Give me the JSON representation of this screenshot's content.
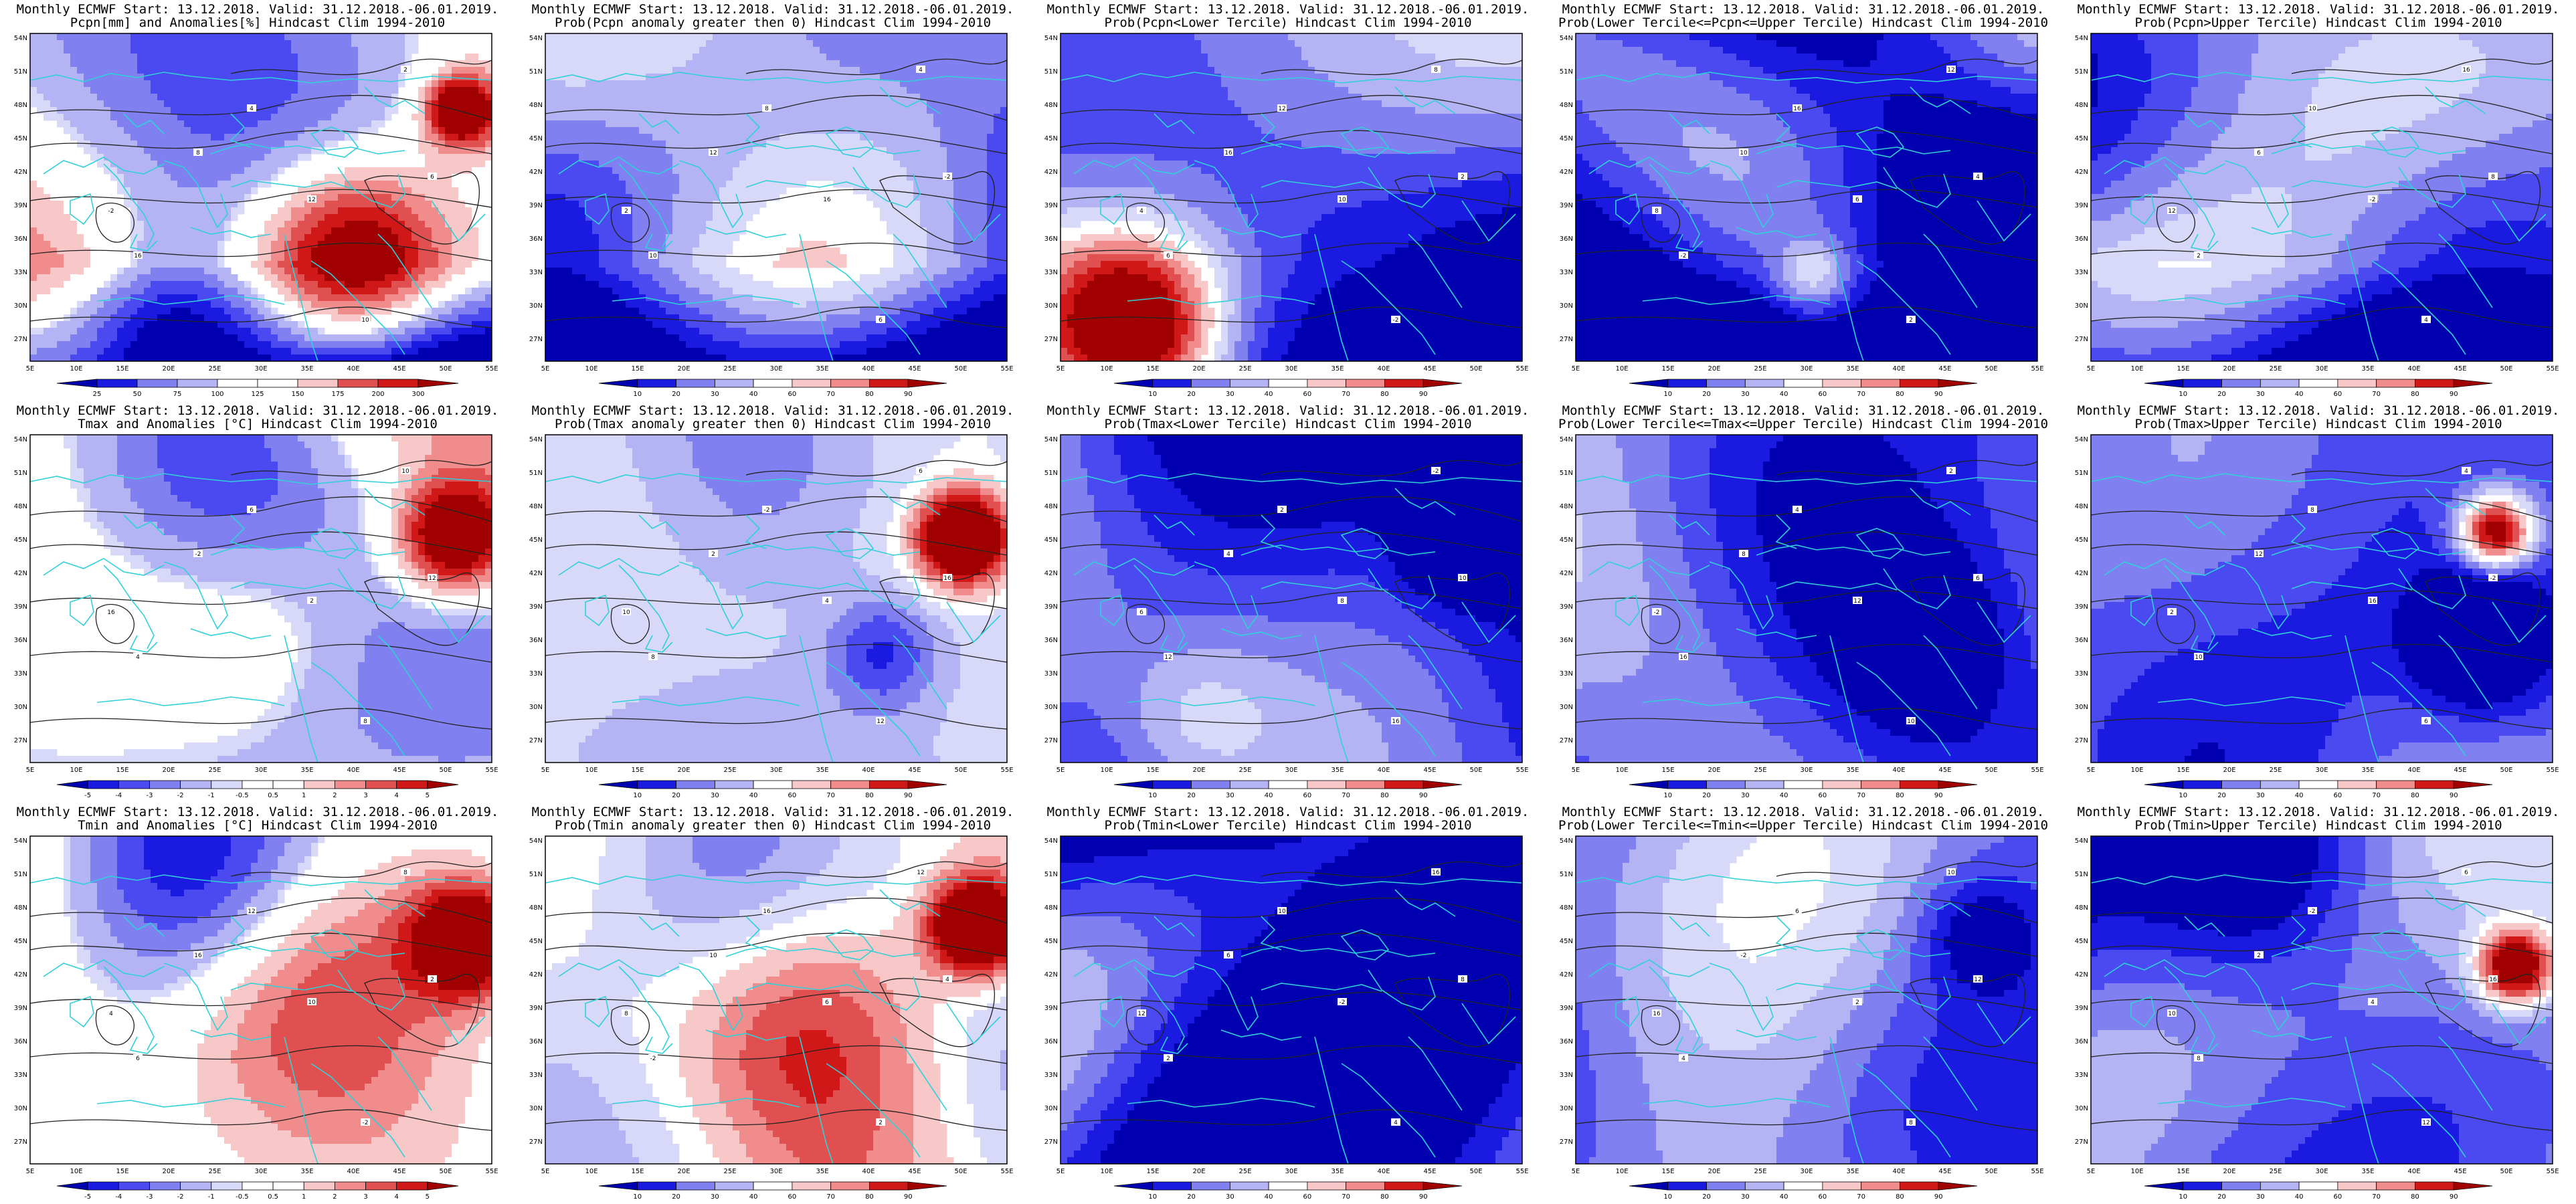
{
  "header_line": "Monthly ECMWF Start: 13.12.2018. Valid: 31.12.2018.-06.01.2019.",
  "lat_labels": [
    "54N",
    "51N",
    "48N",
    "45N",
    "42N",
    "39N",
    "36N",
    "33N",
    "30N",
    "27N"
  ],
  "lon_labels": [
    "5E",
    "10E",
    "15E",
    "20E",
    "25E",
    "30E",
    "35E",
    "40E",
    "45E",
    "50E",
    "55E"
  ],
  "colors": {
    "coast": "#30d0d8",
    "contour": "#222222",
    "blue_dark": "#1010c8",
    "red_dark": "#c00010"
  },
  "panels": [
    {
      "title": "Pcpn[mm] and Anomalies[%] Hindcast Clim 1994-2010",
      "field": "precip_anom",
      "ticks": [
        "25",
        "50",
        "75",
        "100",
        "125",
        "150",
        "175",
        "200",
        "300"
      ]
    },
    {
      "title": "Prob(Pcpn anomaly greater then 0) Hindcast Clim 1994-2010",
      "field": "prob",
      "ticks": [
        "10",
        "20",
        "30",
        "40",
        "60",
        "70",
        "80",
        "90"
      ]
    },
    {
      "title": "Prob(Pcpn<Lower Tercile) Hindcast Clim 1994-2010",
      "field": "prob",
      "ticks": [
        "10",
        "20",
        "30",
        "40",
        "60",
        "70",
        "80",
        "90"
      ]
    },
    {
      "title": "Prob(Lower Tercile<=Pcpn<=Upper Tercile) Hindcast Clim 1994-2010",
      "field": "prob",
      "ticks": [
        "10",
        "20",
        "30",
        "40",
        "60",
        "70",
        "80",
        "90"
      ]
    },
    {
      "title": "Prob(Pcpn>Upper Tercile) Hindcast Clim 1994-2010",
      "field": "prob",
      "ticks": [
        "10",
        "20",
        "30",
        "40",
        "60",
        "70",
        "80",
        "90"
      ]
    },
    {
      "title": "Tmax and Anomalies [°C] Hindcast Clim 1994-2010",
      "field": "temp_anom",
      "ticks": [
        "-5",
        "-4",
        "-3",
        "-2",
        "-1",
        "-0.5",
        "0.5",
        "1",
        "2",
        "3",
        "4",
        "5"
      ]
    },
    {
      "title": "Prob(Tmax anomaly greater then 0) Hindcast Clim 1994-2010",
      "field": "prob",
      "ticks": [
        "10",
        "20",
        "30",
        "40",
        "60",
        "70",
        "80",
        "90"
      ]
    },
    {
      "title": "Prob(Tmax<Lower Tercile) Hindcast Clim 1994-2010",
      "field": "prob",
      "ticks": [
        "10",
        "20",
        "30",
        "40",
        "60",
        "70",
        "80",
        "90"
      ]
    },
    {
      "title": "Prob(Lower Tercile<=Tmax<=Upper Tercile) Hindcast Clim 1994-2010",
      "field": "prob",
      "ticks": [
        "10",
        "20",
        "30",
        "40",
        "60",
        "70",
        "80",
        "90"
      ]
    },
    {
      "title": "Prob(Tmax>Upper Tercile) Hindcast Clim 1994-2010",
      "field": "prob",
      "ticks": [
        "10",
        "20",
        "30",
        "40",
        "60",
        "70",
        "80",
        "90"
      ]
    },
    {
      "title": "Tmin and Anomalies [°C] Hindcast Clim 1994-2010",
      "field": "temp_anom",
      "ticks": [
        "-5",
        "-4",
        "-3",
        "-2",
        "-1",
        "-0.5",
        "0.5",
        "1",
        "2",
        "3",
        "4",
        "5"
      ]
    },
    {
      "title": "Prob(Tmin anomaly greater then 0) Hindcast Clim 1994-2010",
      "field": "prob",
      "ticks": [
        "10",
        "20",
        "30",
        "40",
        "60",
        "70",
        "80",
        "90"
      ]
    },
    {
      "title": "Prob(Tmin<Lower Tercile) Hindcast Clim 1994-2010",
      "field": "prob",
      "ticks": [
        "10",
        "20",
        "30",
        "40",
        "60",
        "70",
        "80",
        "90"
      ]
    },
    {
      "title": "Prob(Lower Tercile<=Tmin<=Upper Tercile) Hindcast Clim 1994-2010",
      "field": "prob",
      "ticks": [
        "10",
        "20",
        "30",
        "40",
        "60",
        "70",
        "80",
        "90"
      ]
    },
    {
      "title": "Prob(Tmin>Upper Tercile) Hindcast Clim 1994-2010",
      "field": "prob",
      "ticks": [
        "10",
        "20",
        "30",
        "40",
        "60",
        "70",
        "80",
        "90"
      ]
    }
  ]
}
